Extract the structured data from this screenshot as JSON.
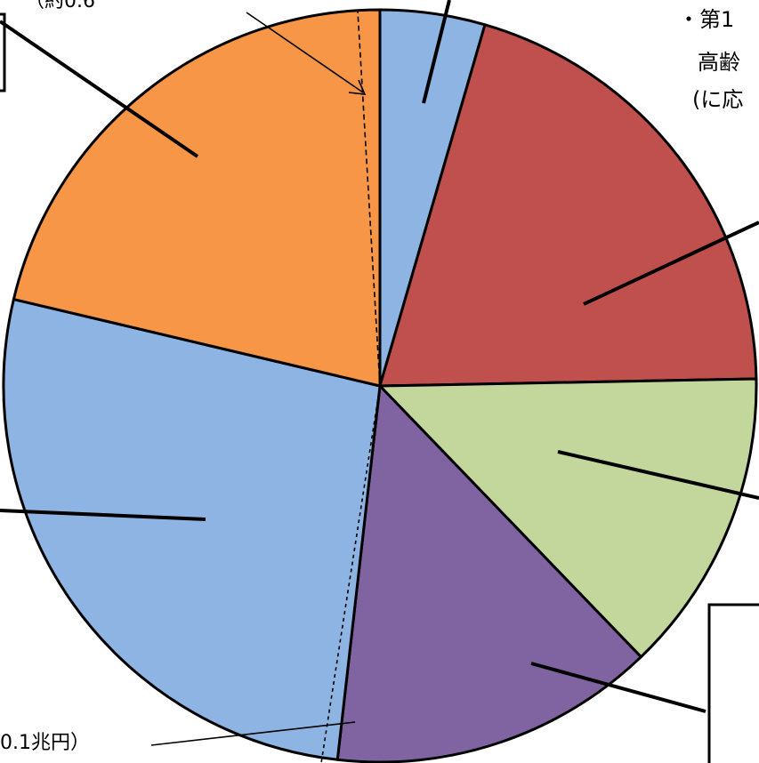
{
  "chart_data": {
    "type": "pie",
    "title": "",
    "start": "12 o'clock, clockwise",
    "slices": [
      {
        "value": 4.5,
        "color": "#8eb4e3"
      },
      {
        "value": 20.2,
        "color": "#c0504d"
      },
      {
        "value": 13.1,
        "color": "#c3d69b"
      },
      {
        "value": 14.0,
        "color": "#8064a2"
      },
      {
        "value": 26.9,
        "color": "#8eb4e3"
      },
      {
        "value": 21.3,
        "color": "#f79646"
      }
    ],
    "annotations": {
      "top_left": "（約0.6",
      "top_right_lines": [
        "・第1",
        "高齢",
        "(に応"
      ],
      "bottom_left": "0.1兆円）"
    }
  }
}
